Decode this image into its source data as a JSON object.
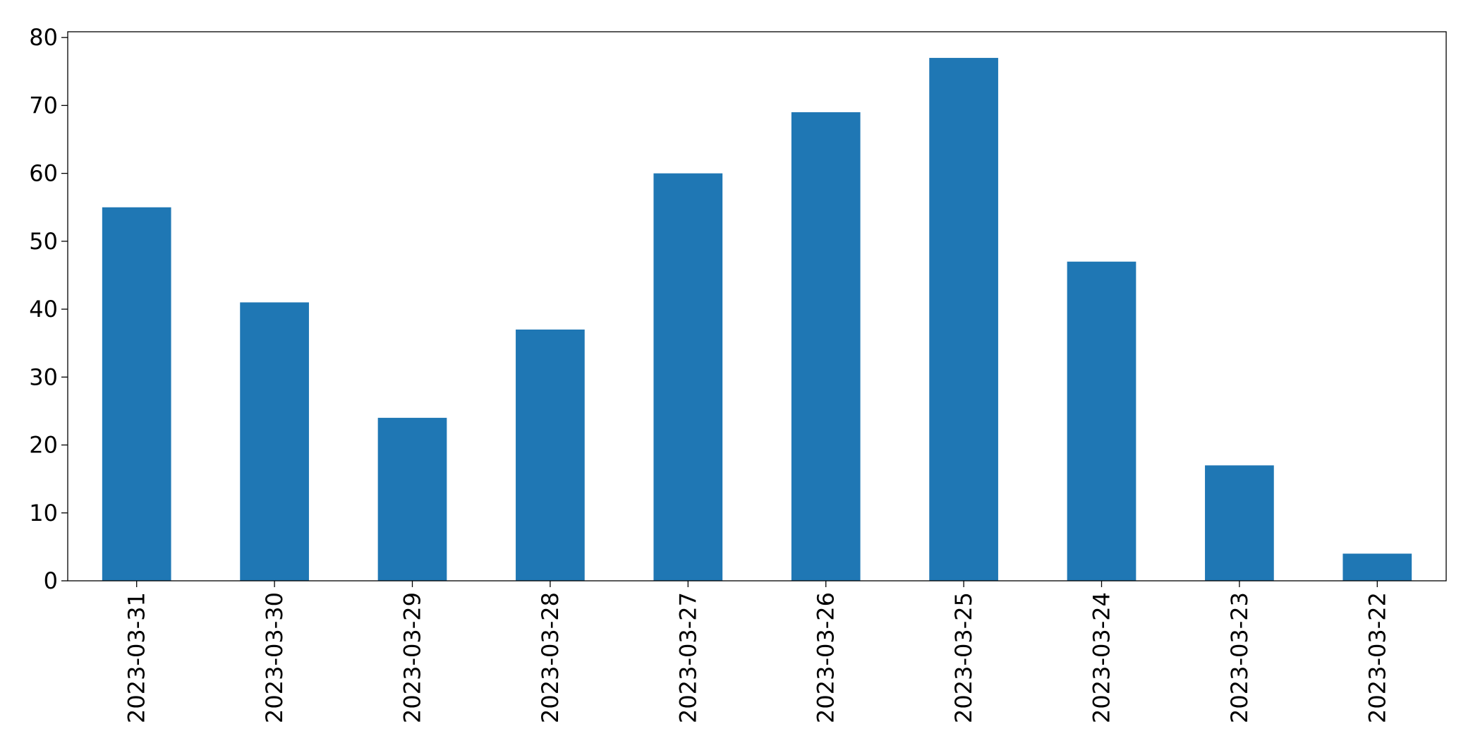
{
  "chart_data": {
    "type": "bar",
    "categories": [
      "2023-03-31",
      "2023-03-30",
      "2023-03-29",
      "2023-03-28",
      "2023-03-27",
      "2023-03-26",
      "2023-03-25",
      "2023-03-24",
      "2023-03-23",
      "2023-03-22"
    ],
    "values": [
      55,
      41,
      24,
      37,
      60,
      69,
      77,
      47,
      17,
      4
    ],
    "color": "#1f77b4",
    "ylim": [
      0,
      80.85
    ],
    "yticks": [
      0,
      10,
      20,
      30,
      40,
      50,
      60,
      70,
      80
    ],
    "grid": false
  }
}
